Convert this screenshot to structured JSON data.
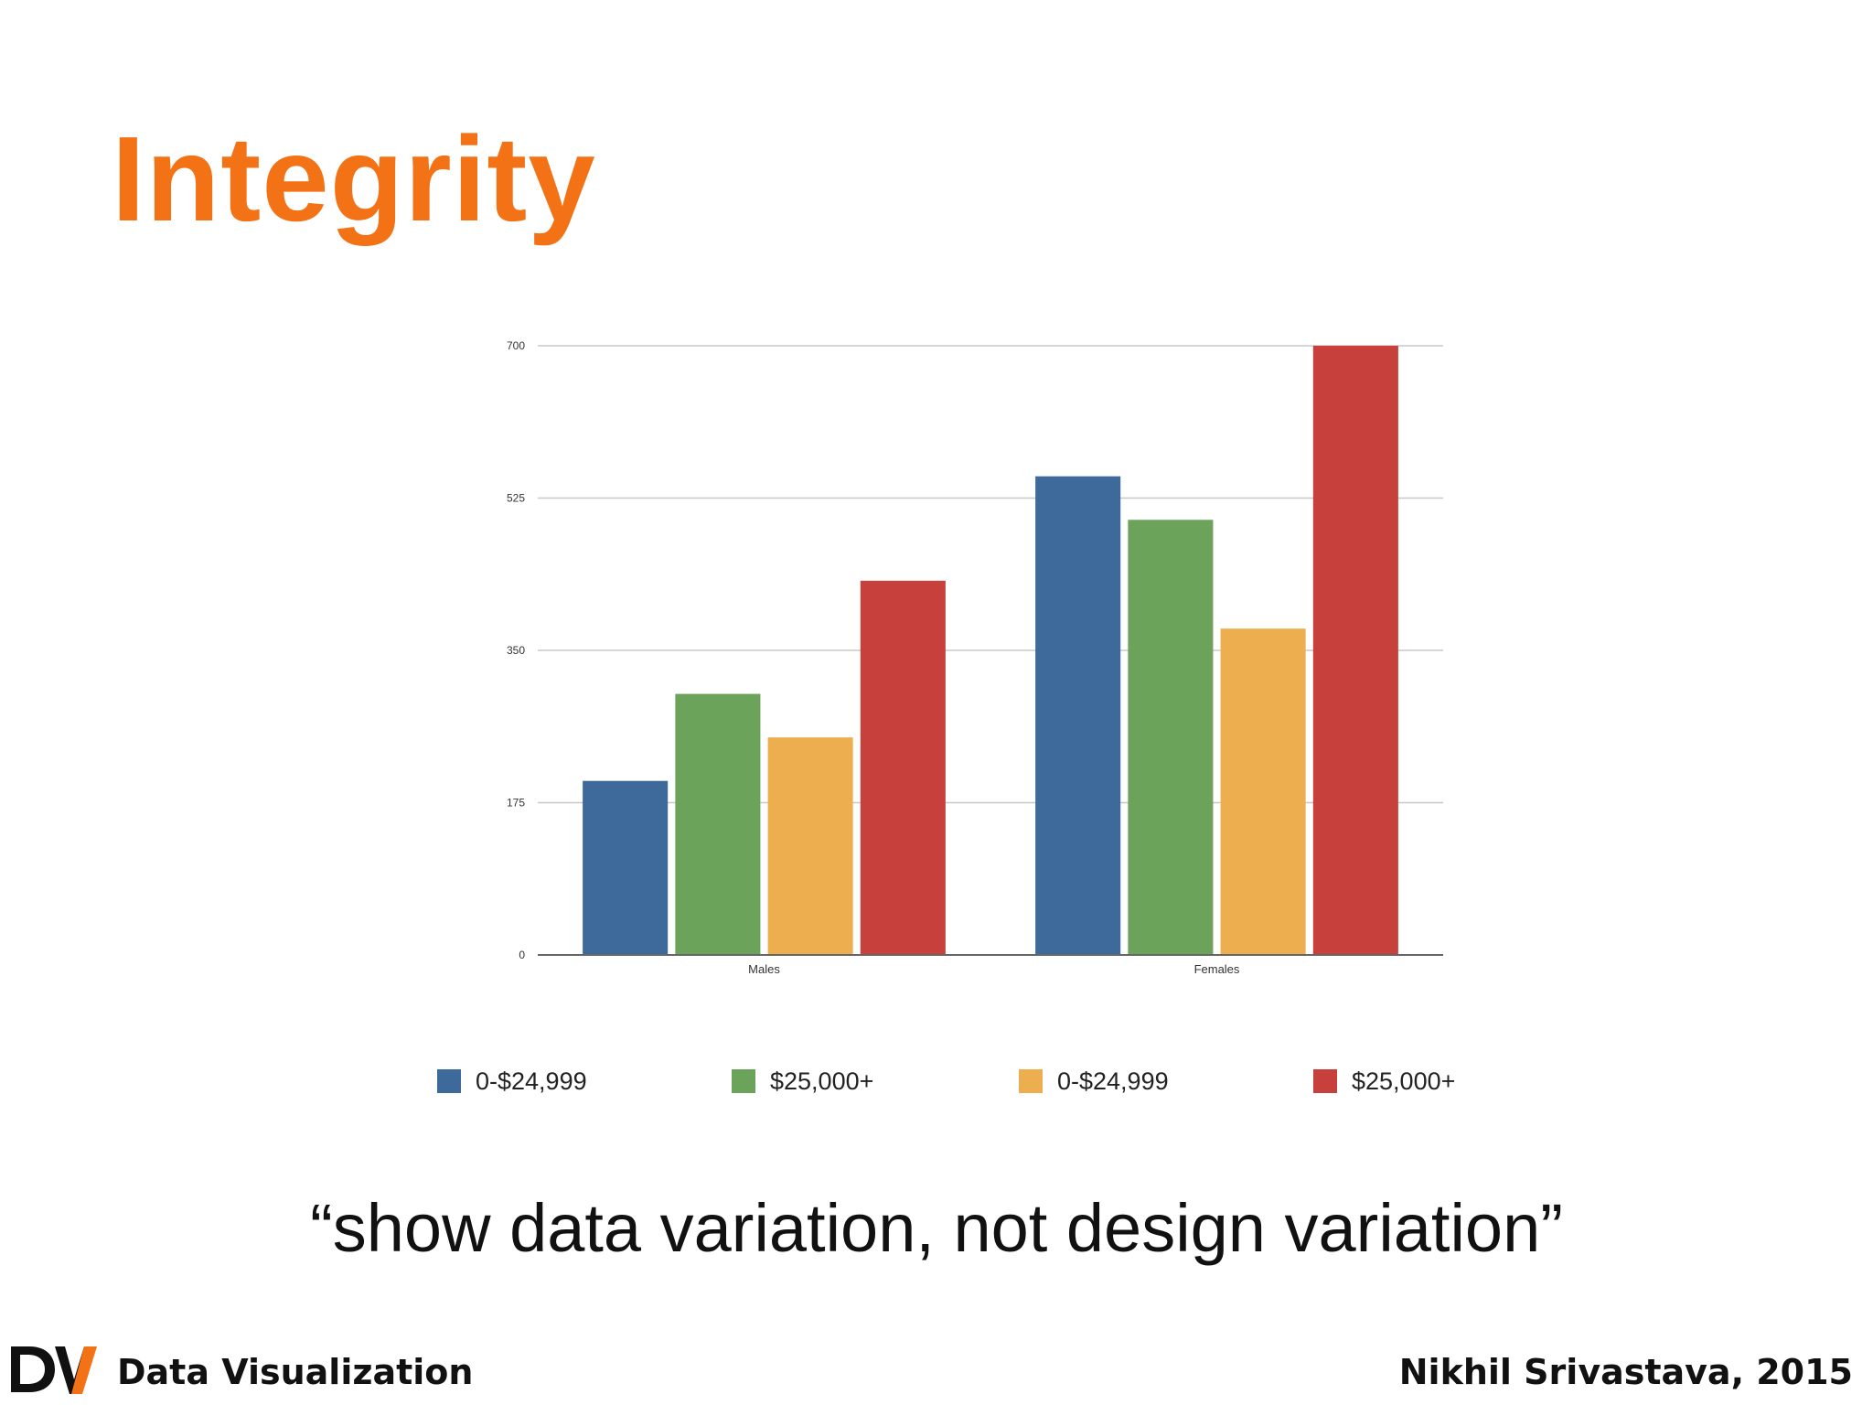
{
  "slide": {
    "title": "Integrity",
    "quote": "“show data variation, not design variation”",
    "footer_left": "Data Visualization",
    "footer_right": "Nikhil Srivastava, 2015",
    "title_color": "#f47216"
  },
  "chart_data": {
    "type": "bar",
    "categories": [
      "Males",
      "Females"
    ],
    "series": [
      {
        "name": "0-$24,999",
        "color": "#3e6a9b",
        "values": [
          200,
          550
        ]
      },
      {
        "name": "$25,000+",
        "color": "#6ba35a",
        "values": [
          300,
          500
        ]
      },
      {
        "name": "0-$24,999",
        "color": "#edae4f",
        "values": [
          250,
          375
        ]
      },
      {
        "name": "$25,000+",
        "color": "#c8403c",
        "values": [
          430,
          700
        ]
      }
    ],
    "yticks": [
      0,
      175,
      350,
      525,
      700
    ],
    "ylim": [
      0,
      700
    ],
    "grid": true,
    "legend_position": "bottom"
  }
}
